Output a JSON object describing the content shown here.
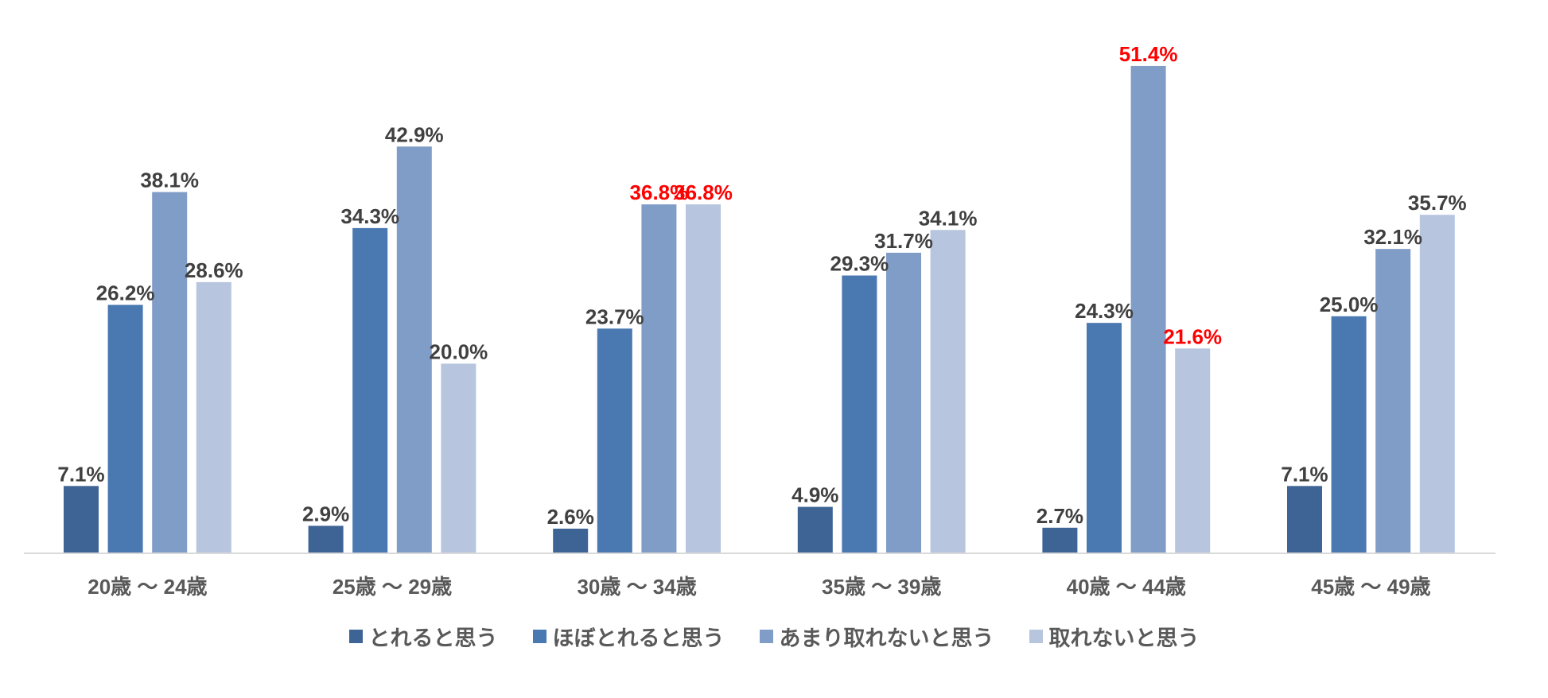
{
  "chart_data": {
    "type": "bar",
    "title": "",
    "xlabel": "",
    "ylabel": "",
    "ylim": [
      0,
      55
    ],
    "grid": false,
    "legend_position": "bottom",
    "categories": [
      "20歳 〜 24歳",
      "25歳 〜 29歳",
      "30歳 〜 34歳",
      "35歳 〜 39歳",
      "40歳 〜 44歳",
      "45歳 〜 49歳"
    ],
    "series": [
      {
        "name": "とれると思う",
        "color": "#3E6495",
        "values": [
          7.1,
          2.9,
          2.6,
          4.9,
          2.7,
          7.1
        ],
        "labels": [
          "7.1%",
          "2.9%",
          "2.6%",
          "4.9%",
          "2.7%",
          "7.1%"
        ]
      },
      {
        "name": "ほぼとれると思う",
        "color": "#4A78B0",
        "values": [
          26.2,
          34.3,
          23.7,
          29.3,
          24.3,
          25.0
        ],
        "labels": [
          "26.2%",
          "34.3%",
          "23.7%",
          "29.3%",
          "24.3%",
          "25.0%"
        ]
      },
      {
        "name": "あまり取れないと思う",
        "color": "#809DC8",
        "values": [
          38.1,
          42.9,
          36.8,
          31.7,
          51.4,
          32.1
        ],
        "labels": [
          "38.1%",
          "42.9%",
          "36.8%",
          "31.7%",
          "51.4%",
          "32.1%"
        ]
      },
      {
        "name": "取れないと思う",
        "color": "#B7C5DF",
        "values": [
          28.6,
          20.0,
          36.8,
          34.1,
          21.6,
          35.7
        ],
        "labels": [
          "28.6%",
          "20.0%",
          "36.8%",
          "34.1%",
          "21.6%",
          "35.7%"
        ]
      }
    ],
    "highlighted_labels": [
      {
        "series": 2,
        "category": 2
      },
      {
        "series": 3,
        "category": 2
      },
      {
        "series": 2,
        "category": 4
      },
      {
        "series": 3,
        "category": 4
      }
    ],
    "label_color": "#404040",
    "highlight_color": "#FF0000",
    "axis_color": "#D9D9D9"
  }
}
